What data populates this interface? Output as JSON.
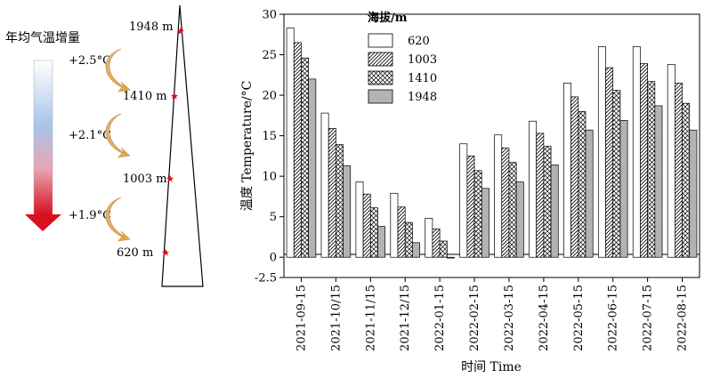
{
  "left_panel": {
    "title": "年均气温增量",
    "elevations": [
      "1948 m",
      "1410 m",
      "1003 m",
      "620 m"
    ],
    "increments": [
      "+2.5°C",
      "+2.1°C",
      "+1.9°C"
    ],
    "arrow_color_top": "#ffffff",
    "arrow_color_mid": "#a9c4ea",
    "arrow_color_bottom": "#d80f1c",
    "marker_color": "#e0101c",
    "curve_arrow_color": "#e3a347"
  },
  "chart_data": {
    "type": "bar",
    "ylabel": "温度 Temperature/°C",
    "xlabel": "时间 Time",
    "ylim": [
      -2.5,
      30
    ],
    "yticks": [
      "-2.5",
      "0",
      "5",
      "10",
      "15",
      "20",
      "25",
      "30"
    ],
    "legend_title": "海拔/m",
    "legend_position": "top-left",
    "categories": [
      "2021-09-15",
      "2021-10/15",
      "2021-11/15",
      "2021-12/15",
      "2022-01-15",
      "2022-02-15",
      "2022-03-15",
      "2022-04-15",
      "2022-05-15",
      "2022-06-15",
      "2022-07-15",
      "2022-08-15"
    ],
    "series": [
      {
        "name": "620",
        "fill": "white",
        "values": [
          28.3,
          17.8,
          9.3,
          7.9,
          4.8,
          14.0,
          15.1,
          16.8,
          21.5,
          26.0,
          26.0,
          23.8
        ]
      },
      {
        "name": "1003",
        "fill": "diagonal",
        "values": [
          26.5,
          15.9,
          7.8,
          6.2,
          3.5,
          12.5,
          13.5,
          15.3,
          19.8,
          23.4,
          23.9,
          21.5
        ]
      },
      {
        "name": "1410",
        "fill": "crosshatch",
        "values": [
          24.6,
          13.9,
          6.1,
          4.3,
          2.0,
          10.7,
          11.7,
          13.7,
          18.0,
          20.6,
          21.7,
          19.0
        ]
      },
      {
        "name": "1948",
        "fill": "gray",
        "values": [
          22.0,
          11.3,
          3.8,
          1.8,
          -0.1,
          8.5,
          9.3,
          11.4,
          15.7,
          16.9,
          18.7,
          15.7
        ]
      }
    ]
  }
}
